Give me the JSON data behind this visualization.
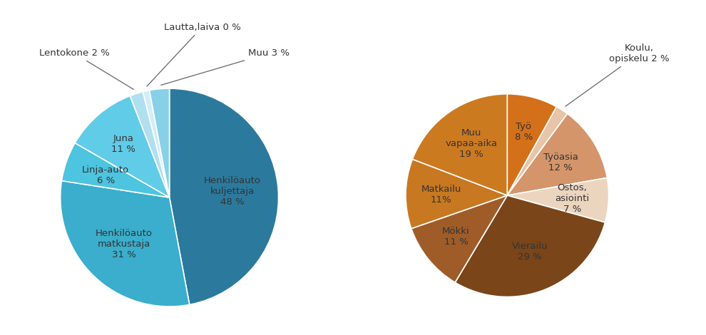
{
  "left_pie": {
    "values": [
      48,
      31,
      6,
      11,
      2,
      1,
      3
    ],
    "colors": [
      "#2b7a9e",
      "#3aaecc",
      "#4dc4e0",
      "#60cce8",
      "#b0dff0",
      "#d0eef8",
      "#88d0e8"
    ],
    "startangle": 90
  },
  "right_pie": {
    "values": [
      8,
      2,
      12,
      7,
      29,
      11,
      11,
      19
    ],
    "colors": [
      "#d4701a",
      "#e8c4a8",
      "#d4956a",
      "#ecd5bf",
      "#7a4518",
      "#a05c28",
      "#c87820",
      "#cc7a20"
    ],
    "startangle": 90
  },
  "bg_color": "#ffffff",
  "text_color": "#333333",
  "label_color": "#333333",
  "fontsize": 9.5,
  "wedge_linewidth": 1.2,
  "wedge_linecolor": "#ffffff"
}
